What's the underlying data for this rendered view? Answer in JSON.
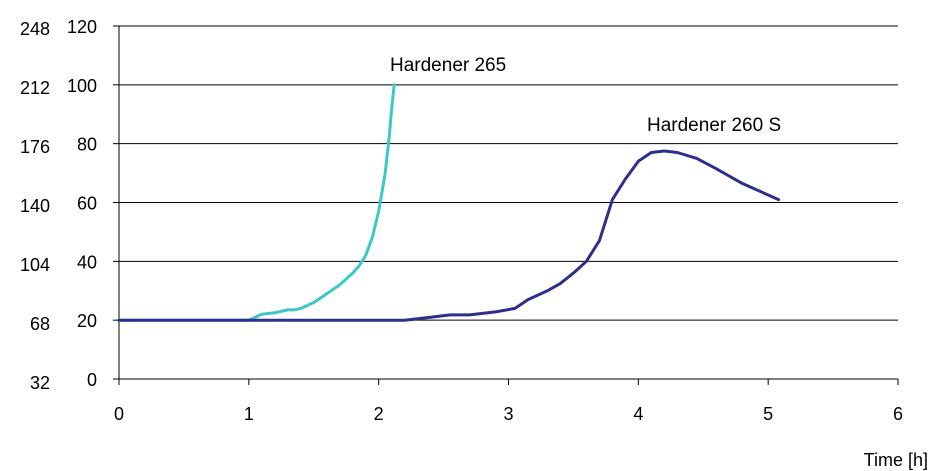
{
  "chart_data": {
    "type": "line",
    "title": "",
    "xlabel": "Time [h]",
    "ylabel": "",
    "xlim": [
      0,
      6
    ],
    "ylim": [
      0,
      120
    ],
    "x_ticks": [
      "0",
      "1",
      "2",
      "3",
      "4",
      "5",
      "6"
    ],
    "y_ticks": [
      "0",
      "20",
      "40",
      "60",
      "80",
      "100",
      "120"
    ],
    "y2_ticks": [
      "32",
      "68",
      "104",
      "140",
      "176",
      "212",
      "248"
    ],
    "grid": "horizontal",
    "legend": "none",
    "series": [
      {
        "name": "Hardener 265",
        "color": "#3cc8c8",
        "x": [
          0,
          0.5,
          1.0,
          1.05,
          1.1,
          1.2,
          1.3,
          1.35,
          1.4,
          1.5,
          1.6,
          1.7,
          1.8,
          1.85,
          1.9,
          1.95,
          2.0,
          2.05,
          2.08,
          2.1,
          2.12
        ],
        "y": [
          20,
          20,
          20,
          21,
          22,
          22.5,
          23.5,
          23.5,
          24,
          26,
          29,
          32,
          36,
          38.5,
          42,
          48,
          57,
          70,
          82,
          92,
          100
        ]
      },
      {
        "name": "Hardener 260 S",
        "color": "#2e2e8c",
        "x": [
          0,
          1.0,
          2.0,
          2.2,
          2.4,
          2.55,
          2.7,
          2.9,
          3.05,
          3.15,
          3.3,
          3.4,
          3.5,
          3.6,
          3.7,
          3.8,
          3.9,
          4.0,
          4.1,
          4.2,
          4.3,
          4.45,
          4.6,
          4.8,
          5.08
        ],
        "y": [
          20,
          20,
          20,
          20,
          21,
          21.8,
          21.8,
          22.8,
          24,
          27,
          30,
          32.5,
          36,
          40,
          47,
          61,
          68,
          74,
          77,
          77.5,
          77,
          75,
          71.5,
          66.5,
          61
        ]
      }
    ],
    "annotations": [
      "Hardener 265",
      "Hardener 260 S"
    ]
  }
}
